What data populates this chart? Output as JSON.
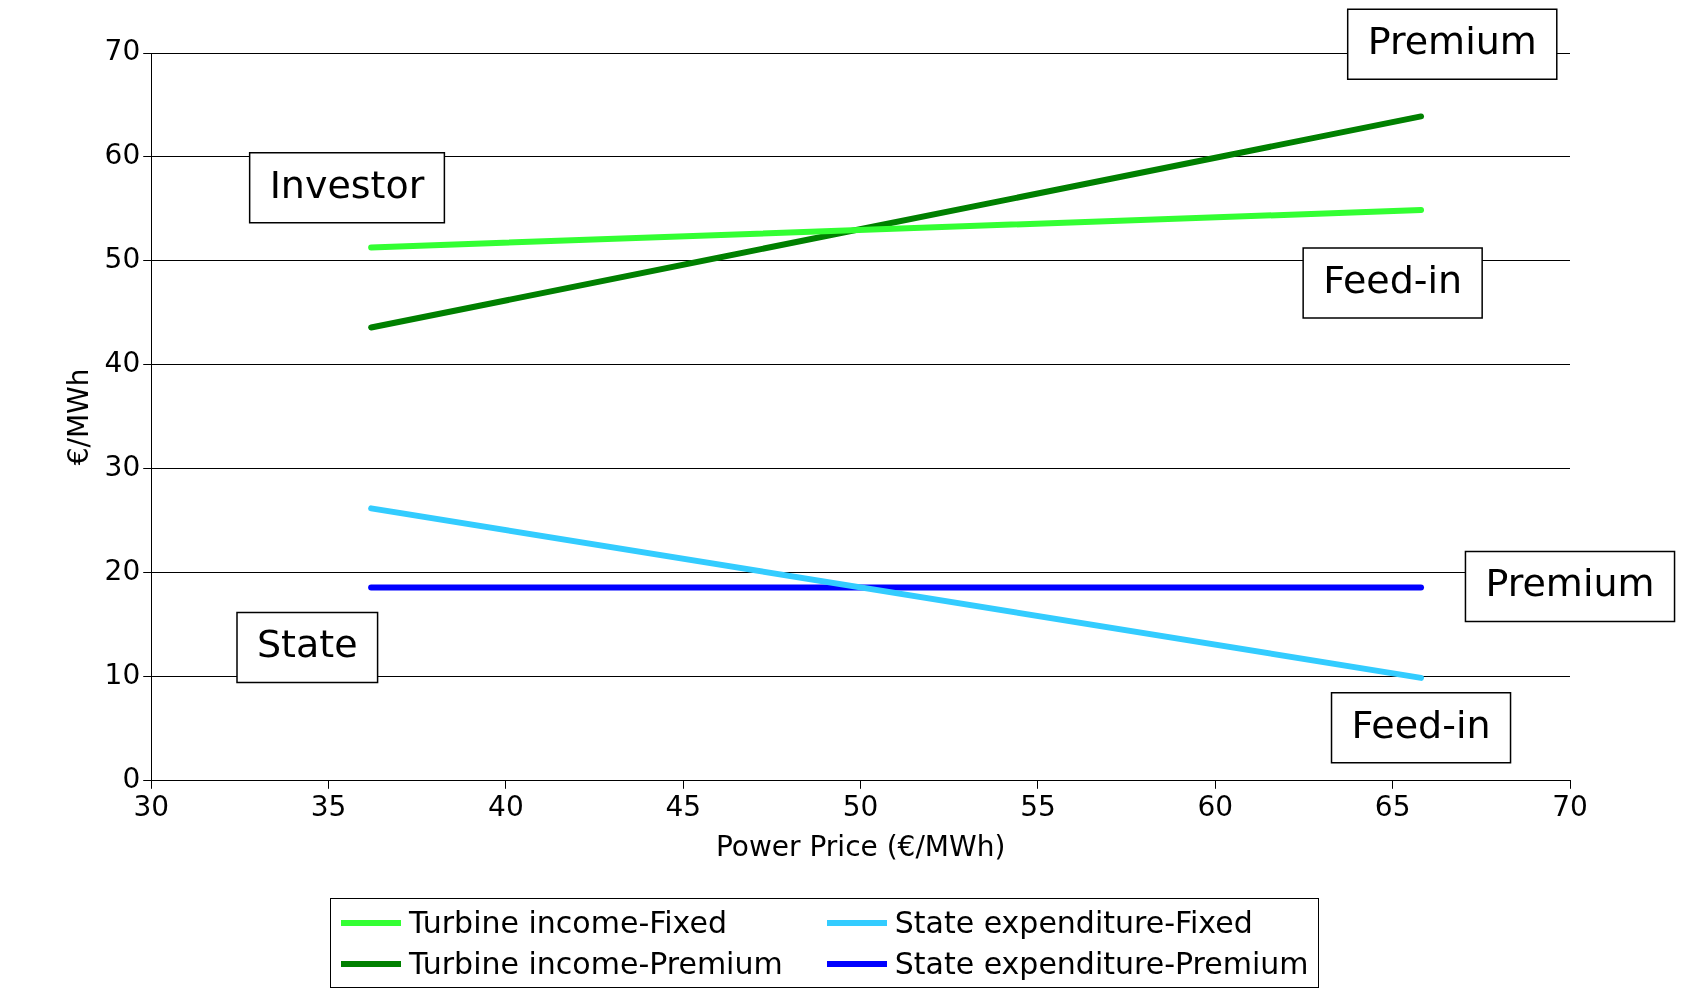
{
  "chart_data": {
    "type": "line",
    "xlabel": "Power Price (€/MWh)",
    "ylabel": "€/MWh",
    "xlim": [
      30,
      70
    ],
    "xticks": [
      30,
      35,
      40,
      45,
      50,
      55,
      60,
      65,
      70
    ],
    "ylim": [
      0,
      70
    ],
    "yticks": [
      0,
      10,
      20,
      30,
      40,
      50,
      60,
      70
    ],
    "grid": "y",
    "legend": "bottom",
    "marker": "none",
    "line_style": "solid",
    "x": [
      36.2,
      65.8
    ],
    "series": [
      {
        "name": "Turbine income-Fixed",
        "color": "#33ff33",
        "values": [
          51.3,
          54.9
        ]
      },
      {
        "name": "State expenditure-Fixed",
        "color": "#33ccff",
        "values": [
          26.2,
          9.9
        ]
      },
      {
        "name": "Turbine income-Premium",
        "color": "#008000",
        "values": [
          43.6,
          63.9
        ]
      },
      {
        "name": "State expenditure-Premium",
        "color": "#0000ff",
        "values": [
          18.6,
          18.6
        ]
      }
    ],
    "annotations": [
      "Investor",
      "Premium",
      "Feed-in",
      "Premium",
      "State",
      "Feed-in"
    ]
  }
}
